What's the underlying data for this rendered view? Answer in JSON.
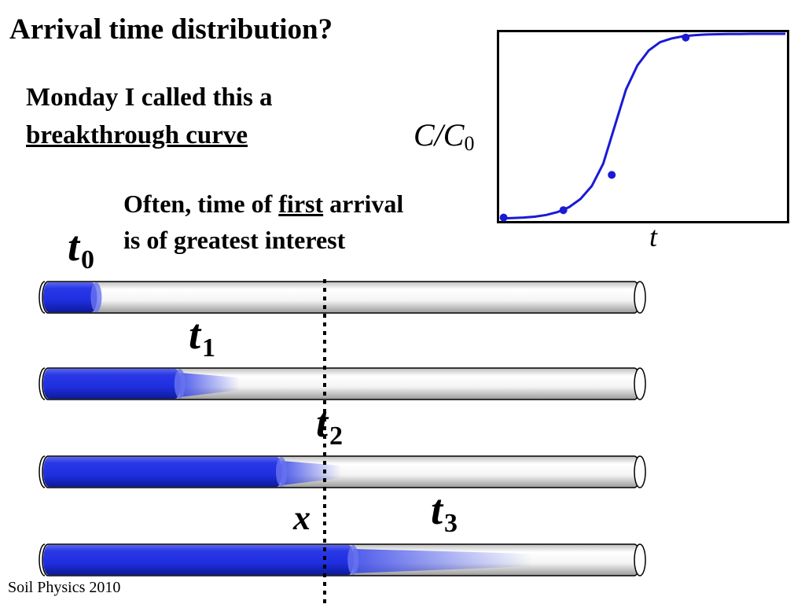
{
  "title": "Arrival time distribution?",
  "note": {
    "line1": "Monday I called this a",
    "line2": "breakthrough curve"
  },
  "often": {
    "part1": "Often, time of ",
    "emph": "first",
    "part2": " arrival",
    "line2": "is of greatest interest"
  },
  "chart": {
    "ylabel_main": "C/C",
    "ylabel_sub": "0",
    "xlabel": "t",
    "curve_color": "#1a1ad6"
  },
  "chart_data": {
    "type": "line",
    "title": "",
    "xlabel": "t",
    "ylabel": "C/C0",
    "xlim": [
      0,
      1
    ],
    "ylim": [
      0,
      1
    ],
    "grid": false,
    "series": [
      {
        "values_x": [
          0.0,
          0.04,
          0.08,
          0.12,
          0.16,
          0.2,
          0.24,
          0.28,
          0.32,
          0.36,
          0.4,
          0.44,
          0.48,
          0.52,
          0.56,
          0.6,
          0.64,
          0.68,
          0.72,
          0.76,
          0.8,
          0.84,
          0.88,
          0.92,
          0.96,
          1.0
        ],
        "values": [
          0.005,
          0.007,
          0.01,
          0.015,
          0.024,
          0.04,
          0.066,
          0.11,
          0.18,
          0.3,
          0.5,
          0.7,
          0.83,
          0.91,
          0.955,
          0.975,
          0.987,
          0.993,
          0.996,
          0.998,
          0.999,
          0.999,
          1.0,
          1.0,
          1.0,
          1.0
        ]
      }
    ],
    "points": [
      {
        "x": 0.01,
        "y": 0.01
      },
      {
        "x": 0.22,
        "y": 0.05
      },
      {
        "x": 0.39,
        "y": 0.24
      },
      {
        "x": 0.65,
        "y": 0.98
      }
    ]
  },
  "labels": {
    "t0": {
      "main": "t",
      "sub": "0"
    },
    "t1": {
      "main": "t",
      "sub": "1"
    },
    "t2": {
      "main": "t",
      "sub": "2"
    },
    "t3": {
      "main": "t",
      "sub": "3"
    },
    "x": "x"
  },
  "tubes": [
    {
      "name": "t0",
      "fill_fraction": 0.09,
      "smear_fraction": 0.0
    },
    {
      "name": "t1",
      "fill_fraction": 0.23,
      "smear_fraction": 0.1
    },
    {
      "name": "t2",
      "fill_fraction": 0.4,
      "smear_fraction": 0.1
    },
    {
      "name": "t3",
      "fill_fraction": 0.52,
      "smear_fraction": 0.3
    }
  ],
  "colors": {
    "solute": "#1f2fe0",
    "tube_fill": "#ffffff",
    "tube_shade": "#c8c8c8",
    "outline": "#000000"
  },
  "footer": "Soil Physics 2010"
}
